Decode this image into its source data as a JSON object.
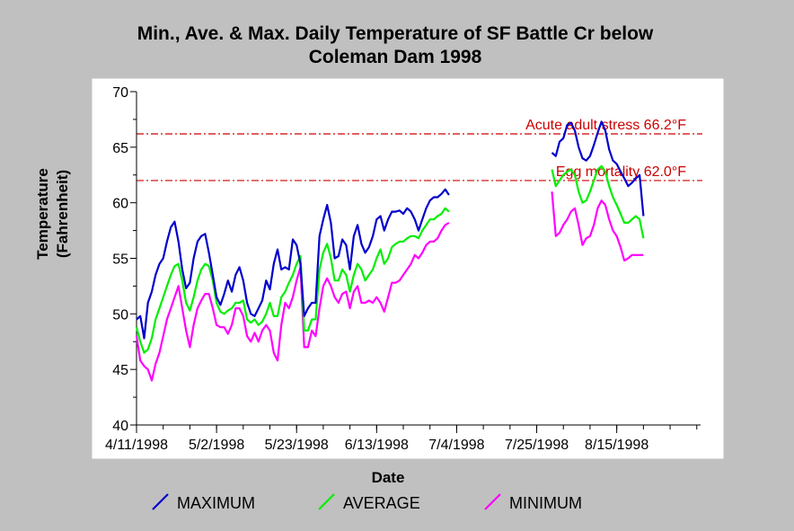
{
  "chart_data": {
    "type": "line",
    "title_line1": "Min., Ave. & Max. Daily Temperature of SF Battle Cr below",
    "title_line2": "Coleman Dam 1998",
    "xlabel": "Date",
    "ylabel_line1": "Temperature",
    "ylabel_line2": "(Fahrenheit)",
    "ylim": [
      40,
      70
    ],
    "xlim": [
      "1998-04-11",
      "1998-09-06"
    ],
    "y_ticks": [
      "40",
      "45",
      "50",
      "55",
      "60",
      "65",
      "70"
    ],
    "x_ticks": [
      {
        "date": "1998-04-11",
        "label": "4/11/1998"
      },
      {
        "date": "1998-05-02",
        "label": "5/2/1998"
      },
      {
        "date": "1998-05-23",
        "label": "5/23/1998"
      },
      {
        "date": "1998-06-13",
        "label": "6/13/1998"
      },
      {
        "date": "1998-07-04",
        "label": "7/4/1998"
      },
      {
        "date": "1998-07-25",
        "label": "7/25/1998"
      },
      {
        "date": "1998-08-15",
        "label": "8/15/1998"
      }
    ],
    "reference_lines": [
      {
        "value": 66.2,
        "label": "Acute adult stress 66.2°F",
        "color": "#cc0000"
      },
      {
        "value": 62.0,
        "label": "Egg mortality 62.0°F",
        "color": "#cc0000"
      }
    ],
    "segment1_start": "1998-04-11",
    "segment2_start": "1998-07-29",
    "series": [
      {
        "name": "MAXIMUM",
        "color": "#0000cc",
        "segment1": [
          49.5,
          49.8,
          47.8,
          51.0,
          52.0,
          53.5,
          54.5,
          55.0,
          56.5,
          57.8,
          58.3,
          56.5,
          54.0,
          52.3,
          52.8,
          55.0,
          56.5,
          57.0,
          57.2,
          55.5,
          53.5,
          51.5,
          50.8,
          51.8,
          53.0,
          52.0,
          53.5,
          54.2,
          53.0,
          51.0,
          50.0,
          49.8,
          50.5,
          51.2,
          53.0,
          52.2,
          54.5,
          55.8,
          54.0,
          54.2,
          54.0,
          56.7,
          56.2,
          54.5,
          49.8,
          50.5,
          51.0,
          51.0,
          57.0,
          58.5,
          59.8,
          58.2,
          55.0,
          55.2,
          56.7,
          56.2,
          54.0,
          57.0,
          58.0,
          56.3,
          55.5,
          56.0,
          57.0,
          58.5,
          58.8,
          57.5,
          58.5,
          59.2,
          59.2,
          59.3,
          59.0,
          59.5,
          59.2,
          58.5,
          57.5,
          58.5,
          59.5,
          60.2,
          60.5,
          60.5,
          60.8,
          61.2,
          60.7
        ],
        "segment2": [
          64.5,
          64.2,
          65.5,
          65.8,
          67.0,
          67.2,
          66.5,
          65.0,
          64.0,
          63.8,
          64.2,
          65.2,
          66.3,
          67.3,
          66.5,
          64.8,
          63.8,
          63.5,
          62.8,
          62.2,
          61.5,
          61.8,
          62.2,
          62.5,
          58.8
        ]
      },
      {
        "name": "AVERAGE",
        "color": "#00ee00",
        "segment1": [
          48.8,
          47.5,
          46.5,
          46.8,
          47.8,
          49.5,
          50.5,
          51.5,
          52.5,
          53.5,
          54.3,
          54.5,
          53.0,
          51.0,
          50.3,
          51.5,
          53.0,
          54.0,
          54.5,
          54.3,
          53.0,
          51.0,
          50.2,
          50.0,
          50.3,
          50.5,
          51.0,
          51.0,
          51.2,
          49.5,
          49.2,
          49.5,
          49.0,
          49.3,
          50.0,
          51.0,
          49.8,
          49.8,
          51.5,
          52.0,
          52.8,
          53.5,
          54.5,
          55.2,
          48.5,
          48.5,
          49.5,
          49.5,
          54.0,
          55.5,
          56.3,
          55.0,
          53.0,
          53.0,
          54.0,
          53.5,
          52.0,
          53.5,
          54.5,
          54.0,
          53.0,
          53.5,
          54.0,
          55.0,
          55.8,
          54.5,
          55.0,
          56.0,
          56.3,
          56.5,
          56.5,
          56.8,
          57.0,
          57.0,
          56.8,
          57.5,
          58.0,
          58.5,
          58.5,
          58.8,
          59.0,
          59.5,
          59.2
        ],
        "segment2": [
          63.0,
          61.5,
          62.0,
          62.5,
          62.8,
          63.0,
          62.5,
          61.0,
          60.0,
          60.2,
          61.0,
          62.0,
          63.0,
          63.3,
          62.8,
          61.5,
          60.5,
          59.8,
          59.0,
          58.2,
          58.2,
          58.5,
          58.8,
          58.5,
          56.8
        ]
      },
      {
        "name": "MINIMUM",
        "color": "#ff00ff",
        "segment1": [
          48.0,
          45.8,
          45.3,
          45.0,
          44.0,
          45.5,
          46.5,
          48.0,
          49.5,
          50.5,
          51.5,
          52.5,
          50.5,
          48.5,
          47.0,
          49.0,
          50.5,
          51.2,
          51.8,
          51.8,
          50.5,
          49.0,
          48.8,
          48.8,
          48.2,
          49.0,
          50.5,
          50.5,
          49.8,
          48.0,
          47.5,
          48.3,
          47.5,
          48.5,
          49.0,
          48.5,
          46.5,
          45.8,
          49.0,
          51.0,
          50.5,
          51.5,
          53.0,
          54.2,
          47.0,
          47.0,
          48.5,
          48.0,
          50.5,
          52.5,
          53.2,
          52.5,
          51.5,
          51.0,
          51.8,
          52.0,
          50.5,
          52.0,
          52.5,
          51.0,
          51.0,
          51.2,
          51.0,
          51.5,
          51.0,
          50.2,
          51.5,
          52.8,
          52.8,
          53.0,
          53.5,
          54.0,
          54.5,
          55.3,
          55.0,
          55.5,
          56.2,
          56.5,
          56.5,
          56.8,
          57.5,
          58.0,
          58.2
        ],
        "segment2": [
          61.0,
          57.0,
          57.3,
          58.0,
          58.5,
          59.2,
          59.5,
          58.0,
          56.2,
          56.8,
          57.0,
          58.0,
          59.5,
          60.2,
          59.8,
          58.5,
          57.5,
          57.0,
          56.0,
          54.8,
          55.0,
          55.3,
          55.3,
          55.3,
          55.3
        ]
      }
    ],
    "legend_position": "bottom"
  }
}
